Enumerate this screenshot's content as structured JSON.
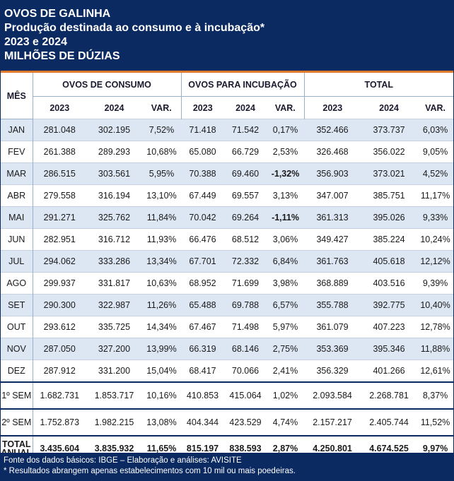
{
  "header": {
    "title": "OVOS DE GALINHA",
    "subtitle": "Produção destinada ao consumo e à incubação*",
    "years": "2023 e 2024",
    "unit": "MILHÕES DE DÚZIAS"
  },
  "columns": {
    "month_label": "MÊS",
    "group_consumo": "OVOS DE CONSUMO",
    "group_incubacao": "OVOS PARA INCUBAÇÃO",
    "group_total": "TOTAL",
    "y2023": "2023",
    "y2024": "2024",
    "var": "VAR."
  },
  "rows": [
    {
      "mes": "JAN",
      "c23": "281.048",
      "c24": "302.195",
      "cv": "7,52%",
      "i23": "71.418",
      "i24": "71.542",
      "iv": "0,17%",
      "t23": "352.466",
      "t24": "373.737",
      "tv": "6,03%"
    },
    {
      "mes": "FEV",
      "c23": "261.388",
      "c24": "289.293",
      "cv": "10,68%",
      "i23": "65.080",
      "i24": "66.729",
      "iv": "2,53%",
      "t23": "326.468",
      "t24": "356.022",
      "tv": "9,05%"
    },
    {
      "mes": "MAR",
      "c23": "286.515",
      "c24": "303.561",
      "cv": "5,95%",
      "i23": "70.388",
      "i24": "69.460",
      "iv": "-1,32%",
      "t23": "356.903",
      "t24": "373.021",
      "tv": "4,52%"
    },
    {
      "mes": "ABR",
      "c23": "279.558",
      "c24": "316.194",
      "cv": "13,10%",
      "i23": "67.449",
      "i24": "69.557",
      "iv": "3,13%",
      "t23": "347.007",
      "t24": "385.751",
      "tv": "11,17%"
    },
    {
      "mes": "MAI",
      "c23": "291.271",
      "c24": "325.762",
      "cv": "11,84%",
      "i23": "70.042",
      "i24": "69.264",
      "iv": "-1,11%",
      "t23": "361.313",
      "t24": "395.026",
      "tv": "9,33%"
    },
    {
      "mes": "JUN",
      "c23": "282.951",
      "c24": "316.712",
      "cv": "11,93%",
      "i23": "66.476",
      "i24": "68.512",
      "iv": "3,06%",
      "t23": "349.427",
      "t24": "385.224",
      "tv": "10,24%"
    },
    {
      "mes": "JUL",
      "c23": "294.062",
      "c24": "333.286",
      "cv": "13,34%",
      "i23": "67.701",
      "i24": "72.332",
      "iv": "6,84%",
      "t23": "361.763",
      "t24": "405.618",
      "tv": "12,12%"
    },
    {
      "mes": "AGO",
      "c23": "299.937",
      "c24": "331.817",
      "cv": "10,63%",
      "i23": "68.952",
      "i24": "71.699",
      "iv": "3,98%",
      "t23": "368.889",
      "t24": "403.516",
      "tv": "9,39%"
    },
    {
      "mes": "SET",
      "c23": "290.300",
      "c24": "322.987",
      "cv": "11,26%",
      "i23": "65.488",
      "i24": "69.788",
      "iv": "6,57%",
      "t23": "355.788",
      "t24": "392.775",
      "tv": "10,40%"
    },
    {
      "mes": "OUT",
      "c23": "293.612",
      "c24": "335.725",
      "cv": "14,34%",
      "i23": "67.467",
      "i24": "71.498",
      "iv": "5,97%",
      "t23": "361.079",
      "t24": "407.223",
      "tv": "12,78%"
    },
    {
      "mes": "NOV",
      "c23": "287.050",
      "c24": "327.200",
      "cv": "13,99%",
      "i23": "66.319",
      "i24": "68.146",
      "iv": "2,75%",
      "t23": "353.369",
      "t24": "395.346",
      "tv": "11,88%"
    },
    {
      "mes": "DEZ",
      "c23": "287.912",
      "c24": "331.200",
      "cv": "15,04%",
      "i23": "68.417",
      "i24": "70.066",
      "iv": "2,41%",
      "t23": "356.329",
      "t24": "401.266",
      "tv": "12,61%"
    }
  ],
  "sem1": {
    "mes": "1º SEM",
    "c23": "1.682.731",
    "c24": "1.853.717",
    "cv": "10,16%",
    "i23": "410.853",
    "i24": "415.064",
    "iv": "1,02%",
    "t23": "2.093.584",
    "t24": "2.268.781",
    "tv": "8,37%"
  },
  "sem2": {
    "mes": "2º SEM",
    "c23": "1.752.873",
    "c24": "1.982.215",
    "cv": "13,08%",
    "i23": "404.344",
    "i24": "423.529",
    "iv": "4,74%",
    "t23": "2.157.217",
    "t24": "2.405.744",
    "tv": "11,52%"
  },
  "total": {
    "mes_line1": "TOTAL",
    "mes_line2": "ANUAL",
    "c23": "3.435.604",
    "c24": "3.835.932",
    "cv": "11,65%",
    "i23": "815.197",
    "i24": "838.593",
    "iv": "2,87%",
    "t23": "4.250.801",
    "t24": "4.674.525",
    "tv": "9,97%"
  },
  "footer": {
    "source": "Fonte dos dados básicos: IBGE – Elaboração e análises: AVISITE",
    "note": "* Resultados abrangem apenas estabelecimentos com 10 mil ou mais poedeiras."
  },
  "colors": {
    "navy": "#0b2a62",
    "orange": "#e07a2a",
    "row_blue": "#dde7f3",
    "negative": "#e02020"
  }
}
